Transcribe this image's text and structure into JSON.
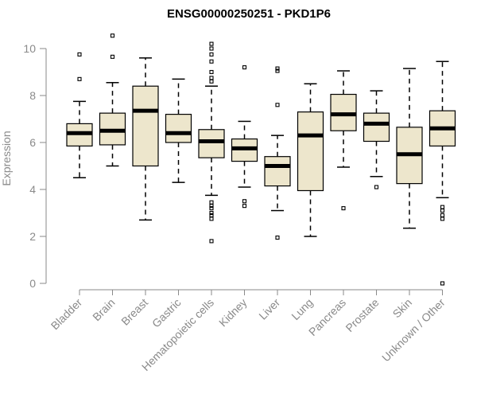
{
  "chart_data": {
    "type": "box",
    "title": "ENSG00000250251 - PKD1P6",
    "xlabel": "",
    "ylabel": "Expression",
    "ylim": [
      0,
      10
    ],
    "yticks": [
      0,
      2,
      4,
      6,
      8,
      10
    ],
    "grid": false,
    "box_color": "#ede6cc",
    "categories": [
      "Bladder",
      "Brain",
      "Breast",
      "Gastric",
      "Hematopoietic cells",
      "Kidney",
      "Liver",
      "Lung",
      "Pancreas",
      "Prostate",
      "Skin",
      "Unknown / Other"
    ],
    "boxes": [
      {
        "q1": 5.85,
        "median": 6.4,
        "q3": 6.8,
        "whisker_low": 4.5,
        "whisker_high": 7.75,
        "outliers": [
          8.7,
          9.75
        ]
      },
      {
        "q1": 5.9,
        "median": 6.5,
        "q3": 7.25,
        "whisker_low": 5.0,
        "whisker_high": 8.55,
        "outliers": [
          9.65,
          10.55
        ]
      },
      {
        "q1": 5.0,
        "median": 7.35,
        "q3": 8.4,
        "whisker_low": 2.7,
        "whisker_high": 9.6,
        "outliers": []
      },
      {
        "q1": 6.0,
        "median": 6.4,
        "q3": 7.2,
        "whisker_low": 4.3,
        "whisker_high": 8.7,
        "outliers": []
      },
      {
        "q1": 5.35,
        "median": 6.05,
        "q3": 6.55,
        "whisker_low": 3.75,
        "whisker_high": 8.4,
        "outliers": [
          1.8,
          2.75,
          2.9,
          3.0,
          3.2,
          3.3,
          3.45,
          8.6,
          8.75,
          9.0,
          9.45,
          9.75,
          10.0,
          10.2
        ]
      },
      {
        "q1": 5.2,
        "median": 5.75,
        "q3": 6.15,
        "whisker_low": 4.1,
        "whisker_high": 6.9,
        "outliers": [
          3.3,
          3.5,
          9.2
        ]
      },
      {
        "q1": 4.15,
        "median": 5.0,
        "q3": 5.4,
        "whisker_low": 3.1,
        "whisker_high": 6.3,
        "outliers": [
          1.95,
          7.6,
          9.05,
          9.15
        ]
      },
      {
        "q1": 3.95,
        "median": 6.3,
        "q3": 7.3,
        "whisker_low": 2.0,
        "whisker_high": 8.5,
        "outliers": []
      },
      {
        "q1": 6.5,
        "median": 7.2,
        "q3": 8.05,
        "whisker_low": 4.95,
        "whisker_high": 9.05,
        "outliers": [
          3.2
        ]
      },
      {
        "q1": 6.05,
        "median": 6.8,
        "q3": 7.25,
        "whisker_low": 4.55,
        "whisker_high": 8.2,
        "outliers": [
          4.1
        ]
      },
      {
        "q1": 4.25,
        "median": 5.5,
        "q3": 6.65,
        "whisker_low": 2.35,
        "whisker_high": 9.15,
        "outliers": []
      },
      {
        "q1": 5.85,
        "median": 6.6,
        "q3": 7.35,
        "whisker_low": 3.65,
        "whisker_high": 9.45,
        "outliers": [
          0.0,
          2.75,
          2.9,
          3.1,
          3.25
        ]
      }
    ]
  }
}
